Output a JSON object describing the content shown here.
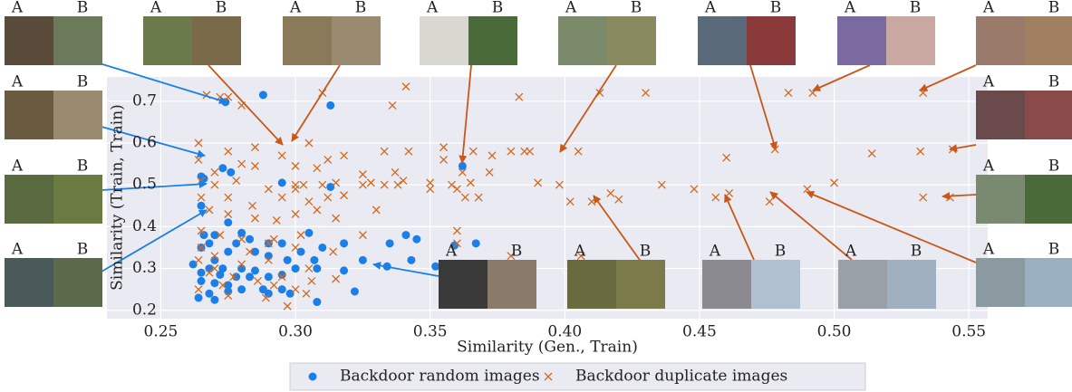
{
  "chart_data": {
    "type": "scatter",
    "xlabel": "Similarity (Gen., Train)",
    "ylabel": "Similarity (Train, Train)",
    "xlim": [
      0.23,
      0.557
    ],
    "ylim": [
      0.18,
      0.758
    ],
    "xticks": [
      {
        "value": 0.25,
        "label": "0.25"
      },
      {
        "value": 0.3,
        "label": "0.30"
      },
      {
        "value": 0.35,
        "label": "0.35"
      },
      {
        "value": 0.4,
        "label": "0.40"
      },
      {
        "value": 0.45,
        "label": "0.45"
      },
      {
        "value": 0.5,
        "label": "0.50"
      },
      {
        "value": 0.55,
        "label": "0.55"
      }
    ],
    "yticks": [
      0.2,
      0.3,
      0.4,
      0.5,
      0.6,
      0.7
    ],
    "grid": true,
    "legend": "bottom",
    "series": [
      {
        "name": "Backdoor random images",
        "color": "#1a7fe8",
        "marker": "circle",
        "x": [
          0.288,
          0.274,
          0.313,
          0.362,
          0.273,
          0.276,
          0.265,
          0.266,
          0.295,
          0.313,
          0.265,
          0.275,
          0.27,
          0.266,
          0.28,
          0.305,
          0.283,
          0.29,
          0.295,
          0.278,
          0.268,
          0.341,
          0.345,
          0.335,
          0.318,
          0.367,
          0.359,
          0.265,
          0.275,
          0.285,
          0.29,
          0.297,
          0.307,
          0.325,
          0.343,
          0.352,
          0.334,
          0.27,
          0.262,
          0.268,
          0.273,
          0.28,
          0.285,
          0.3,
          0.308,
          0.318,
          0.265,
          0.272,
          0.278,
          0.283,
          0.29,
          0.295,
          0.265,
          0.27,
          0.275,
          0.28,
          0.288,
          0.295,
          0.275,
          0.268,
          0.264,
          0.27,
          0.29,
          0.298,
          0.308,
          0.322,
          0.302,
          0.31
        ],
        "values": [
          0.715,
          0.698,
          0.69,
          0.545,
          0.54,
          0.53,
          0.52,
          0.515,
          0.505,
          0.495,
          0.45,
          0.41,
          0.38,
          0.38,
          0.385,
          0.385,
          0.37,
          0.36,
          0.36,
          0.36,
          0.36,
          0.38,
          0.37,
          0.36,
          0.36,
          0.36,
          0.355,
          0.35,
          0.34,
          0.34,
          0.33,
          0.32,
          0.32,
          0.32,
          0.32,
          0.305,
          0.305,
          0.32,
          0.31,
          0.3,
          0.3,
          0.3,
          0.295,
          0.3,
          0.3,
          0.295,
          0.29,
          0.285,
          0.28,
          0.28,
          0.28,
          0.285,
          0.27,
          0.265,
          0.26,
          0.25,
          0.25,
          0.25,
          0.245,
          0.24,
          0.23,
          0.225,
          0.24,
          0.24,
          0.22,
          0.245,
          0.34,
          0.35
        ]
      },
      {
        "name": "Backdoor duplicate images",
        "color": "#d2691e",
        "marker": "x",
        "x": [
          0.267,
          0.272,
          0.275,
          0.28,
          0.31,
          0.336,
          0.341,
          0.383,
          0.413,
          0.43,
          0.483,
          0.492,
          0.533,
          0.264,
          0.275,
          0.285,
          0.295,
          0.305,
          0.318,
          0.333,
          0.355,
          0.366,
          0.373,
          0.385,
          0.478,
          0.264,
          0.27,
          0.28,
          0.285,
          0.3,
          0.308,
          0.312,
          0.325,
          0.337,
          0.342,
          0.355,
          0.362,
          0.38,
          0.387,
          0.398,
          0.405,
          0.46,
          0.514,
          0.532,
          0.544,
          0.265,
          0.27,
          0.278,
          0.29,
          0.3,
          0.303,
          0.315,
          0.325,
          0.34,
          0.35,
          0.365,
          0.372,
          0.3,
          0.31,
          0.265,
          0.275,
          0.284,
          0.295,
          0.305,
          0.312,
          0.318,
          0.328,
          0.333,
          0.338,
          0.35,
          0.358,
          0.36,
          0.363,
          0.368,
          0.39,
          0.402,
          0.41,
          0.417,
          0.42,
          0.436,
          0.448,
          0.456,
          0.461,
          0.476,
          0.49,
          0.5,
          0.533,
          0.543,
          0.268,
          0.275,
          0.285,
          0.293,
          0.3,
          0.308,
          0.315,
          0.33,
          0.265,
          0.272,
          0.28,
          0.292,
          0.302,
          0.325,
          0.36,
          0.265,
          0.27,
          0.283,
          0.29,
          0.3,
          0.314,
          0.264,
          0.27,
          0.28,
          0.29,
          0.305,
          0.268,
          0.277,
          0.286,
          0.295,
          0.306,
          0.315,
          0.38,
          0.36,
          0.406,
          0.264,
          0.273,
          0.292,
          0.3,
          0.304,
          0.275,
          0.289,
          0.297
        ],
        "values": [
          0.715,
          0.71,
          0.71,
          0.69,
          0.72,
          0.69,
          0.735,
          0.71,
          0.72,
          0.72,
          0.72,
          0.72,
          0.72,
          0.6,
          0.58,
          0.59,
          0.57,
          0.6,
          0.57,
          0.58,
          0.56,
          0.58,
          0.57,
          0.58,
          0.585,
          0.56,
          0.53,
          0.55,
          0.545,
          0.545,
          0.54,
          0.56,
          0.525,
          0.53,
          0.58,
          0.59,
          0.53,
          0.58,
          0.58,
          0.5,
          0.58,
          0.565,
          0.575,
          0.58,
          0.585,
          0.51,
          0.5,
          0.51,
          0.49,
          0.5,
          0.5,
          0.505,
          0.5,
          0.51,
          0.505,
          0.505,
          0.53,
          0.49,
          0.5,
          0.47,
          0.47,
          0.45,
          0.47,
          0.46,
          0.47,
          0.475,
          0.505,
          0.5,
          0.5,
          0.49,
          0.5,
          0.49,
          0.47,
          0.47,
          0.505,
          0.46,
          0.46,
          0.48,
          0.465,
          0.5,
          0.49,
          0.47,
          0.48,
          0.46,
          0.49,
          0.505,
          0.47,
          0.47,
          0.44,
          0.43,
          0.42,
          0.415,
          0.43,
          0.44,
          0.42,
          0.44,
          0.39,
          0.38,
          0.37,
          0.37,
          0.38,
          0.38,
          0.39,
          0.35,
          0.33,
          0.34,
          0.36,
          0.35,
          0.34,
          0.32,
          0.3,
          0.31,
          0.32,
          0.3,
          0.29,
          0.28,
          0.27,
          0.28,
          0.27,
          0.275,
          0.33,
          0.36,
          0.33,
          0.25,
          0.26,
          0.26,
          0.25,
          0.24,
          0.235,
          0.23,
          0.21
        ]
      }
    ],
    "image_pairs": [
      [
        "A",
        "B"
      ],
      [
        "A",
        "B"
      ],
      [
        "A",
        "B"
      ],
      [
        "A",
        "B"
      ],
      [
        "A",
        "B"
      ],
      [
        "A",
        "B"
      ],
      [
        "A",
        "B"
      ],
      [
        "A",
        "B"
      ],
      [
        "A",
        "B"
      ],
      [
        "A",
        "B"
      ],
      [
        "A",
        "B"
      ],
      [
        "A",
        "B"
      ],
      [
        "A",
        "B"
      ],
      [
        "A",
        "B"
      ],
      [
        "A",
        "B"
      ],
      [
        "A",
        "B"
      ],
      [
        "A",
        "B"
      ],
      [
        "A",
        "B"
      ]
    ]
  }
}
